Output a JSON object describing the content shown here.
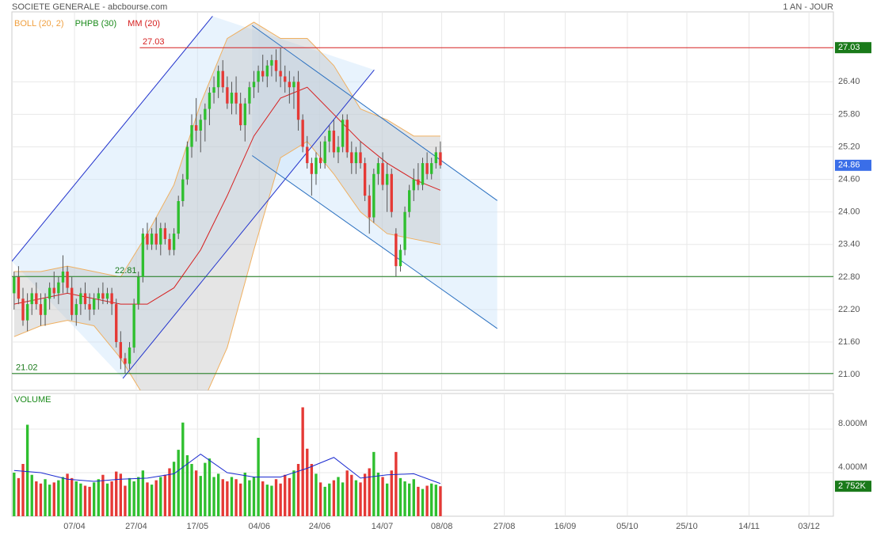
{
  "header": {
    "title": "SOCIETE GENERALE - abcbourse.com",
    "period": "1 AN - JOUR"
  },
  "chart_data": {
    "type": "candlestick",
    "legend": [
      {
        "name": "BOLL (20, 2)",
        "color": "#f0a040"
      },
      {
        "name": "PHPB (30)",
        "color": "#1a8a1a"
      },
      {
        "name": "MM (20)",
        "color": "#d62020"
      }
    ],
    "up_color": "#2fbf2f",
    "down_color": "#e53935",
    "ohlc": [
      [
        22.5,
        22.9,
        22.2,
        22.8
      ],
      [
        22.8,
        23.0,
        22.3,
        22.4
      ],
      [
        22.4,
        22.6,
        21.9,
        22.0
      ],
      [
        22.0,
        22.5,
        21.8,
        22.3
      ],
      [
        22.3,
        22.6,
        22.1,
        22.5
      ],
      [
        22.5,
        22.7,
        22.2,
        22.3
      ],
      [
        22.3,
        22.5,
        21.9,
        22.1
      ],
      [
        22.1,
        22.5,
        21.9,
        22.4
      ],
      [
        22.4,
        22.7,
        22.2,
        22.6
      ],
      [
        22.6,
        22.9,
        22.4,
        22.5
      ],
      [
        22.5,
        22.8,
        22.3,
        22.7
      ],
      [
        22.7,
        23.2,
        22.5,
        22.9
      ],
      [
        22.9,
        23.0,
        22.5,
        22.6
      ],
      [
        22.6,
        22.8,
        22.0,
        22.1
      ],
      [
        22.1,
        22.4,
        21.9,
        22.3
      ],
      [
        22.3,
        22.6,
        22.1,
        22.5
      ],
      [
        22.5,
        22.7,
        22.2,
        22.3
      ],
      [
        22.3,
        22.5,
        22.0,
        22.2
      ],
      [
        22.2,
        22.5,
        22.1,
        22.4
      ],
      [
        22.4,
        22.6,
        22.2,
        22.5
      ],
      [
        22.5,
        22.7,
        22.3,
        22.4
      ],
      [
        22.4,
        22.6,
        22.3,
        22.5
      ],
      [
        22.5,
        22.6,
        22.1,
        22.3
      ],
      [
        22.3,
        22.4,
        21.5,
        21.6
      ],
      [
        21.6,
        21.8,
        21.1,
        21.3
      ],
      [
        21.3,
        21.4,
        21.02,
        21.2
      ],
      [
        21.2,
        21.6,
        21.1,
        21.5
      ],
      [
        21.5,
        22.4,
        21.4,
        22.3
      ],
      [
        22.3,
        22.9,
        22.2,
        22.8
      ],
      [
        22.8,
        23.7,
        22.7,
        23.6
      ],
      [
        23.6,
        23.8,
        23.3,
        23.4
      ],
      [
        23.4,
        23.7,
        23.3,
        23.6
      ],
      [
        23.6,
        23.9,
        23.3,
        23.4
      ],
      [
        23.4,
        23.8,
        23.2,
        23.7
      ],
      [
        23.7,
        23.8,
        23.4,
        23.5
      ],
      [
        23.5,
        23.6,
        23.2,
        23.3
      ],
      [
        23.3,
        23.7,
        23.2,
        23.6
      ],
      [
        23.6,
        24.3,
        23.5,
        24.2
      ],
      [
        24.2,
        24.7,
        24.1,
        24.6
      ],
      [
        24.6,
        25.3,
        24.5,
        25.2
      ],
      [
        25.2,
        25.8,
        25.0,
        25.6
      ],
      [
        25.6,
        26.1,
        25.3,
        25.5
      ],
      [
        25.5,
        25.8,
        25.1,
        25.7
      ],
      [
        25.7,
        26.0,
        25.3,
        25.9
      ],
      [
        25.9,
        26.3,
        25.6,
        26.2
      ],
      [
        26.2,
        26.5,
        26.0,
        26.3
      ],
      [
        26.3,
        26.7,
        26.1,
        26.6
      ],
      [
        26.6,
        26.8,
        26.2,
        26.3
      ],
      [
        26.3,
        26.5,
        25.9,
        26.0
      ],
      [
        26.0,
        26.4,
        25.8,
        26.2
      ],
      [
        26.2,
        26.5,
        25.8,
        26.0
      ],
      [
        26.0,
        26.2,
        25.5,
        25.6
      ],
      [
        25.6,
        26.1,
        25.3,
        26.0
      ],
      [
        26.0,
        26.4,
        25.8,
        26.3
      ],
      [
        26.3,
        26.6,
        26.1,
        26.4
      ],
      [
        26.4,
        26.7,
        26.2,
        26.6
      ],
      [
        26.6,
        26.9,
        26.4,
        26.5
      ],
      [
        26.5,
        26.8,
        26.3,
        26.7
      ],
      [
        26.7,
        26.9,
        26.5,
        26.8
      ],
      [
        26.8,
        27.0,
        26.4,
        26.6
      ],
      [
        26.6,
        27.03,
        26.3,
        26.5
      ],
      [
        26.5,
        26.7,
        26.2,
        26.4
      ],
      [
        26.4,
        26.6,
        26.0,
        26.3
      ],
      [
        26.3,
        26.5,
        25.9,
        26.4
      ],
      [
        26.4,
        26.6,
        25.5,
        25.7
      ],
      [
        25.7,
        25.8,
        25.1,
        25.2
      ],
      [
        25.2,
        25.4,
        24.8,
        24.9
      ],
      [
        24.9,
        25.0,
        24.3,
        24.7
      ],
      [
        24.7,
        25.1,
        24.5,
        25.0
      ],
      [
        25.0,
        25.3,
        24.8,
        24.9
      ],
      [
        24.9,
        25.4,
        24.8,
        25.3
      ],
      [
        25.3,
        25.6,
        25.1,
        25.5
      ],
      [
        25.5,
        25.7,
        25.0,
        25.1
      ],
      [
        25.1,
        25.4,
        24.9,
        25.2
      ],
      [
        25.2,
        25.8,
        25.1,
        25.7
      ],
      [
        25.7,
        25.8,
        25.0,
        25.1
      ],
      [
        25.1,
        25.3,
        24.7,
        24.9
      ],
      [
        24.9,
        25.2,
        24.7,
        25.1
      ],
      [
        25.1,
        25.3,
        24.8,
        24.9
      ],
      [
        24.9,
        25.0,
        24.2,
        24.3
      ],
      [
        24.3,
        24.5,
        23.6,
        23.9
      ],
      [
        23.9,
        24.8,
        23.8,
        24.7
      ],
      [
        24.7,
        25.0,
        24.5,
        24.9
      ],
      [
        24.9,
        25.1,
        24.4,
        24.5
      ],
      [
        24.5,
        24.9,
        24.0,
        24.7
      ],
      [
        24.7,
        24.8,
        23.9,
        24.0
      ],
      [
        23.6,
        23.7,
        22.81,
        23.0
      ],
      [
        23.0,
        23.4,
        22.9,
        23.3
      ],
      [
        23.3,
        24.1,
        23.2,
        24.0
      ],
      [
        24.0,
        24.5,
        23.9,
        24.4
      ],
      [
        24.4,
        24.8,
        24.2,
        24.6
      ],
      [
        24.6,
        24.9,
        24.4,
        24.5
      ],
      [
        24.5,
        25.0,
        24.4,
        24.9
      ],
      [
        24.9,
        25.1,
        24.6,
        24.7
      ],
      [
        24.7,
        25.0,
        24.6,
        24.9
      ],
      [
        24.9,
        25.2,
        24.8,
        25.1
      ],
      [
        25.1,
        25.3,
        24.8,
        24.86
      ]
    ],
    "xlim": [
      0,
      185
    ],
    "xticks": [
      {
        "value": 14.1,
        "label": "07/04"
      },
      {
        "value": 28,
        "label": "27/04"
      },
      {
        "value": 41.8,
        "label": "17/05"
      },
      {
        "value": 55.7,
        "label": "04/06"
      },
      {
        "value": 69.3,
        "label": "24/06"
      },
      {
        "value": 83.4,
        "label": "14/07"
      },
      {
        "value": 96.8,
        "label": "08/08"
      },
      {
        "value": 110.9,
        "label": "27/08"
      },
      {
        "value": 124.6,
        "label": "16/09"
      },
      {
        "value": 138.6,
        "label": "05/10"
      },
      {
        "value": 152,
        "label": "25/10"
      },
      {
        "value": 166,
        "label": "14/11"
      },
      {
        "value": 179.5,
        "label": "03/12"
      }
    ],
    "ylim": [
      20.71,
      27.69
    ],
    "yticks": [
      {
        "value": 21,
        "label": "21.00"
      },
      {
        "value": 21.6,
        "label": "21.60"
      },
      {
        "value": 22.2,
        "label": "22.20"
      },
      {
        "value": 22.8,
        "label": "22.80"
      },
      {
        "value": 23.4,
        "label": "23.40"
      },
      {
        "value": 24,
        "label": "24.00"
      },
      {
        "value": 24.6,
        "label": "24.60"
      },
      {
        "value": 25.2,
        "label": "25.20"
      },
      {
        "value": 25.8,
        "label": "25.80"
      },
      {
        "value": 26.4,
        "label": "26.40"
      }
    ],
    "grid": true,
    "bollinger": {
      "x": [
        0,
        6,
        12,
        18,
        24,
        30,
        36,
        42,
        48,
        54,
        60,
        66,
        72,
        78,
        84,
        90,
        96
      ],
      "upper": [
        22.9,
        22.9,
        23.0,
        22.9,
        22.8,
        23.6,
        24.5,
        26.0,
        27.2,
        27.5,
        27.2,
        27.2,
        26.7,
        25.9,
        25.7,
        25.4,
        25.4
      ],
      "lower": [
        21.7,
        21.9,
        22.0,
        21.9,
        21.3,
        20.5,
        20.3,
        20.4,
        21.5,
        23.3,
        25.0,
        25.3,
        24.7,
        24.0,
        23.6,
        23.5,
        23.4
      ],
      "color": "#f0b060"
    },
    "mm": {
      "x": [
        0,
        6,
        12,
        18,
        24,
        30,
        36,
        42,
        48,
        54,
        60,
        66,
        72,
        78,
        84,
        90,
        96
      ],
      "values": [
        22.3,
        22.4,
        22.5,
        22.4,
        22.3,
        22.3,
        22.6,
        23.3,
        24.3,
        25.4,
        26.1,
        26.3,
        25.8,
        25.3,
        24.9,
        24.6,
        24.4
      ],
      "color": "#d62020"
    },
    "channels": [
      {
        "x": [
          0,
          45.2
        ],
        "y": [
          23.09,
          27.61
        ],
        "color": "#2233cc"
      },
      {
        "x": [
          25,
          81.6
        ],
        "y": [
          20.93,
          26.62
        ],
        "color": "#2233cc"
      },
      {
        "x": [
          54.1,
          109.3
        ],
        "y": [
          27.44,
          24.21
        ],
        "color": "#2a70c0"
      },
      {
        "x": [
          54.1,
          109.3
        ],
        "y": [
          25.04,
          21.85
        ],
        "color": "#2a70c0"
      }
    ],
    "hlines": [
      {
        "value": 27.03,
        "label": "27.03",
        "color": "#d62020"
      },
      {
        "value": 22.81,
        "label": "22.81",
        "color": "#1a7a1a"
      },
      {
        "value": 21.02,
        "label": "21.02",
        "color": "#1a7a1a"
      }
    ],
    "last": {
      "value": 24.86,
      "label": "24.86"
    },
    "volume": {
      "title": "VOLUME",
      "ylim": [
        0,
        11.27
      ],
      "yticks": [
        {
          "value": 4,
          "label": "4.000M"
        },
        {
          "value": 8,
          "label": "8.000M"
        }
      ],
      "values": [
        4.0,
        3.5,
        4.8,
        8.4,
        3.8,
        3.2,
        3.0,
        3.4,
        2.9,
        3.1,
        3.3,
        3.6,
        3.9,
        3.5,
        3.2,
        3.0,
        2.8,
        2.7,
        3.1,
        3.4,
        3.8,
        3.0,
        3.2,
        4.1,
        3.9,
        2.8,
        3.5,
        3.2,
        3.6,
        4.2,
        3.1,
        2.9,
        3.3,
        3.6,
        3.8,
        4.4,
        5.0,
        6.1,
        8.6,
        5.6,
        4.8,
        4.2,
        3.7,
        4.9,
        5.3,
        3.6,
        3.9,
        3.4,
        3.2,
        3.6,
        3.4,
        3.0,
        4.0,
        3.3,
        3.6,
        7.2,
        3.2,
        2.9,
        2.8,
        3.4,
        3.0,
        3.8,
        3.5,
        4.2,
        4.8,
        10.0,
        6.2,
        4.8,
        3.9,
        3.1,
        2.7,
        3.0,
        3.3,
        3.6,
        3.1,
        4.2,
        3.8,
        3.3,
        3.1,
        3.9,
        4.4,
        5.9,
        4.0,
        3.6,
        3.0,
        4.2,
        5.9,
        3.5,
        3.2,
        3.0,
        3.4,
        2.7,
        2.5,
        2.8,
        3.0,
        2.9,
        2.752
      ],
      "ma": {
        "x": [
          0,
          6,
          12,
          18,
          24,
          30,
          36,
          42,
          48,
          54,
          60,
          66,
          72,
          78,
          84,
          90,
          96
        ],
        "values": [
          4.2,
          4.0,
          3.4,
          3.2,
          3.4,
          3.5,
          3.9,
          5.7,
          4.0,
          3.6,
          3.6,
          4.4,
          5.4,
          3.5,
          3.8,
          3.9,
          3.0
        ],
        "color": "#1a2ad0"
      },
      "last": {
        "value": 2.752,
        "label": "2 752K"
      }
    }
  }
}
